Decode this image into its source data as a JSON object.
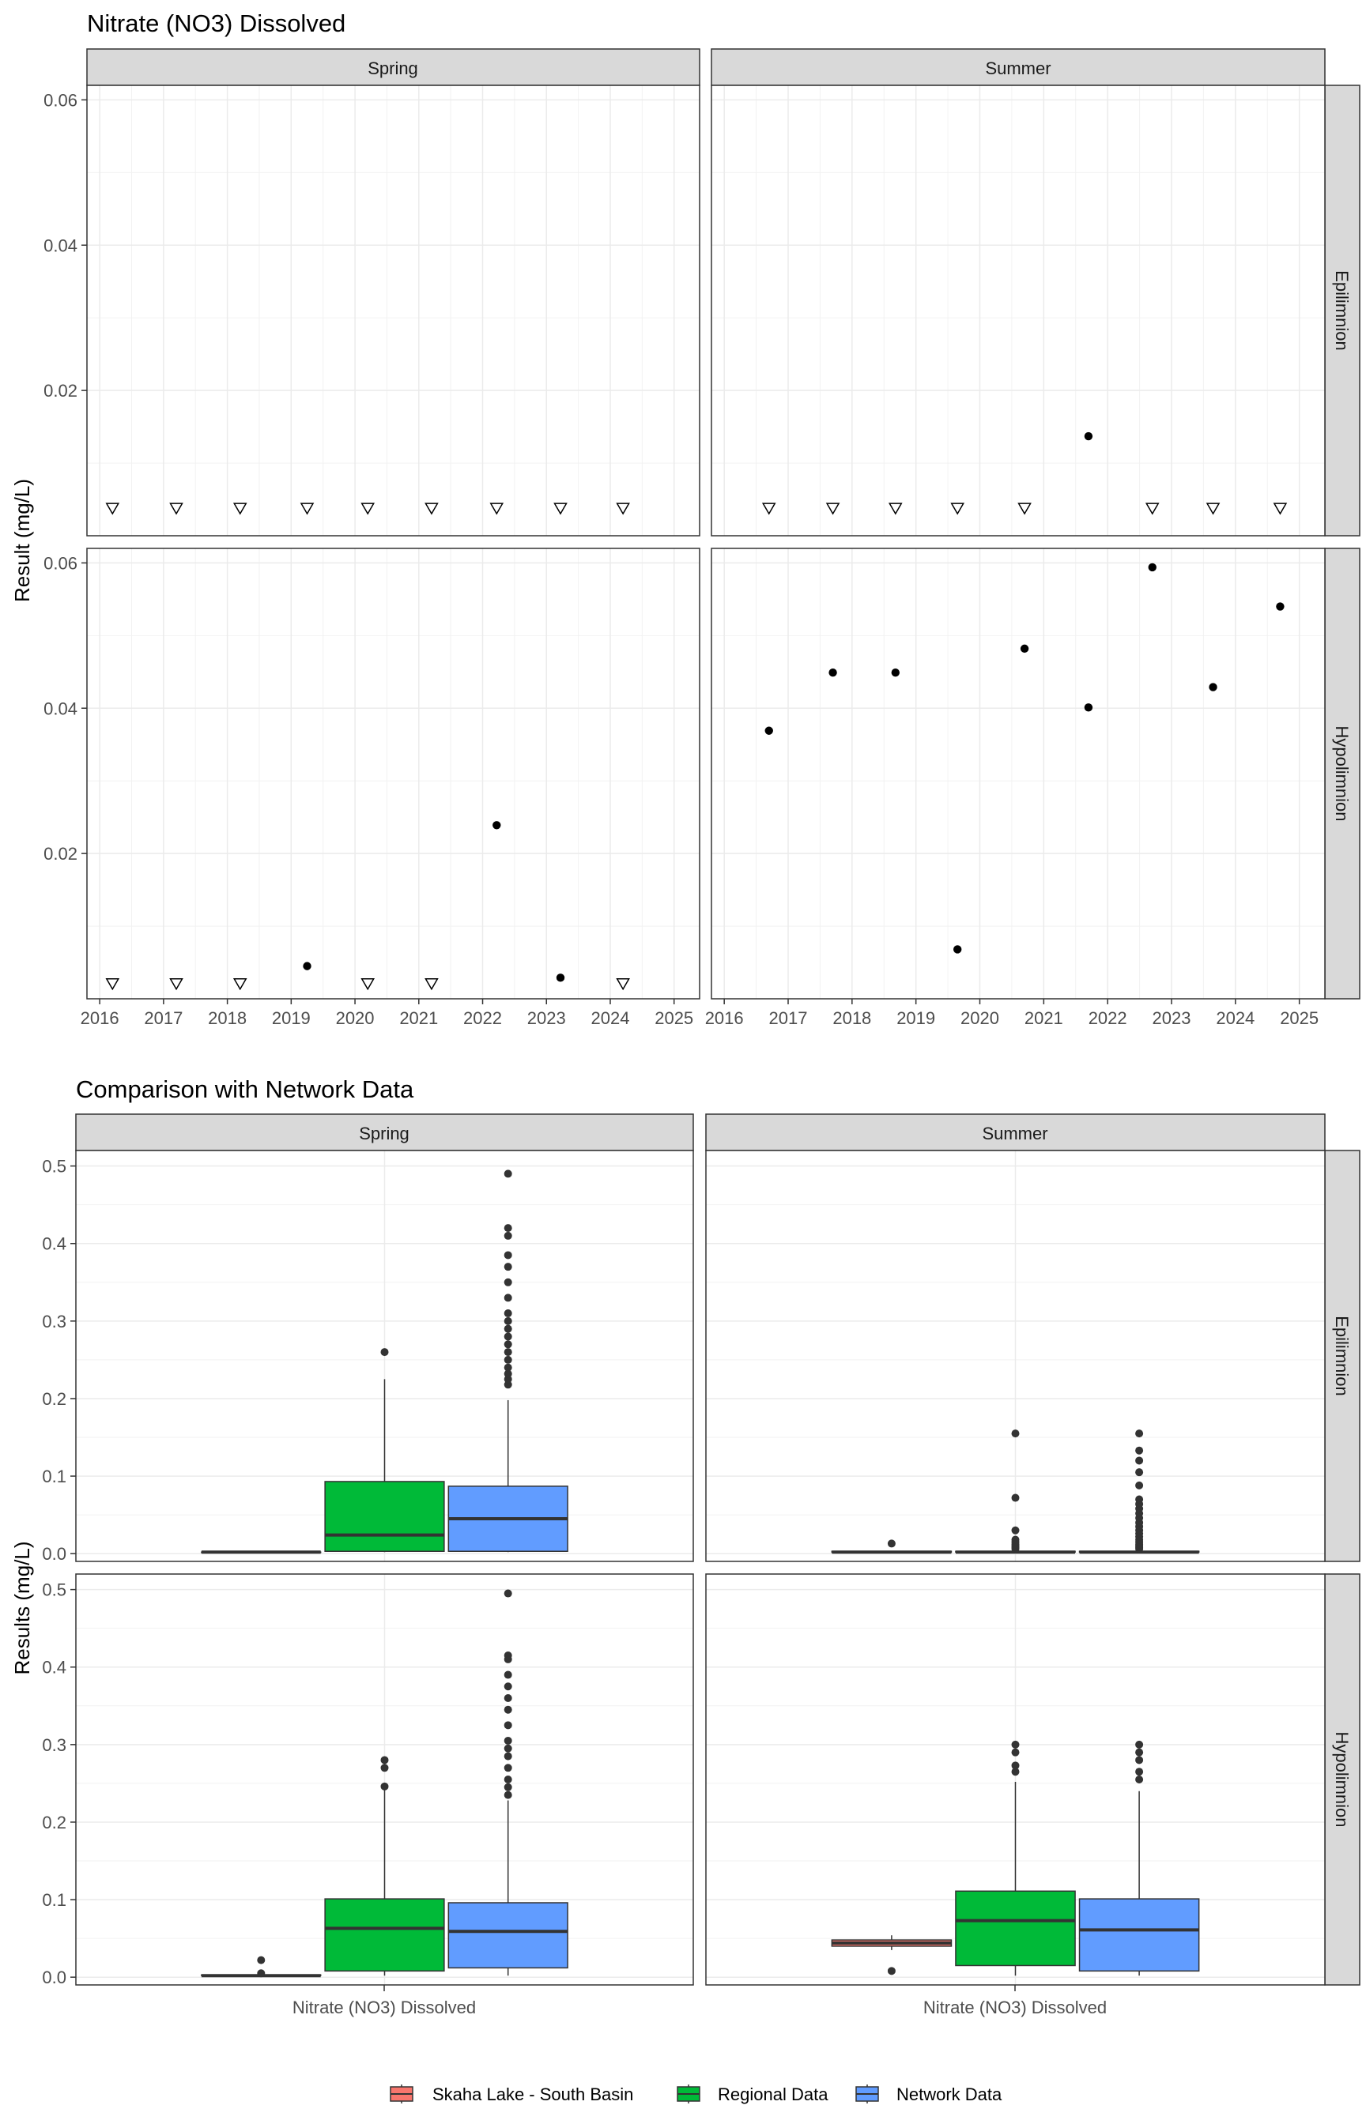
{
  "chart_data": [
    {
      "type": "scatter",
      "title": "Nitrate (NO3) Dissolved",
      "ylabel": "Result (mg/L)",
      "xlabel": "",
      "ylim": [
        0.0,
        0.062
      ],
      "yticks": [
        "0.02",
        "0.04",
        "0.06"
      ],
      "ytick_values": [
        0.02,
        0.04,
        0.06
      ],
      "xlim": [
        2015.8,
        2025.4
      ],
      "xticks": [
        "2016",
        "2017",
        "2018",
        "2019",
        "2020",
        "2021",
        "2022",
        "2023",
        "2024",
        "2025"
      ],
      "xtick_values": [
        2016,
        2017,
        2018,
        2019,
        2020,
        2021,
        2022,
        2023,
        2024,
        2025
      ],
      "columns": [
        "Spring",
        "Summer"
      ],
      "rows": [
        "Epilimnion",
        "Hypolimnion"
      ],
      "detected_marker": "filled-circle",
      "nondetect_marker": "open-triangle-down",
      "grid": true,
      "panels": [
        {
          "column": "Spring",
          "row": "Epilimnion",
          "detected": [],
          "nondetect": [
            [
              2016.2,
              0.0038
            ],
            [
              2017.2,
              0.0038
            ],
            [
              2018.2,
              0.0038
            ],
            [
              2019.25,
              0.0038
            ],
            [
              2020.2,
              0.0038
            ],
            [
              2021.2,
              0.0038
            ],
            [
              2022.22,
              0.0038
            ],
            [
              2023.22,
              0.0038
            ],
            [
              2024.2,
              0.0038
            ]
          ]
        },
        {
          "column": "Summer",
          "row": "Epilimnion",
          "detected": [
            [
              2021.7,
              0.0137
            ]
          ],
          "nondetect": [
            [
              2016.7,
              0.0038
            ],
            [
              2017.7,
              0.0038
            ],
            [
              2018.68,
              0.0038
            ],
            [
              2019.65,
              0.0038
            ],
            [
              2020.7,
              0.0038
            ],
            [
              2022.7,
              0.0038
            ],
            [
              2023.65,
              0.0038
            ],
            [
              2024.7,
              0.0038
            ]
          ]
        },
        {
          "column": "Spring",
          "row": "Hypolimnion",
          "detected": [
            [
              2019.25,
              0.0045
            ],
            [
              2022.22,
              0.0239
            ],
            [
              2023.22,
              0.0029
            ]
          ],
          "nondetect": [
            [
              2016.2,
              0.0021
            ],
            [
              2017.2,
              0.0021
            ],
            [
              2018.2,
              0.0021
            ],
            [
              2020.2,
              0.0021
            ],
            [
              2021.2,
              0.0021
            ],
            [
              2024.2,
              0.0021
            ]
          ]
        },
        {
          "column": "Summer",
          "row": "Hypolimnion",
          "detected": [
            [
              2016.7,
              0.0369
            ],
            [
              2017.7,
              0.0449
            ],
            [
              2018.68,
              0.0449
            ],
            [
              2019.65,
              0.0068
            ],
            [
              2020.7,
              0.0482
            ],
            [
              2021.7,
              0.0401
            ],
            [
              2022.7,
              0.0594
            ],
            [
              2023.65,
              0.0429
            ],
            [
              2024.7,
              0.054
            ]
          ],
          "nondetect": []
        }
      ]
    },
    {
      "type": "box",
      "title": "Comparison with Network Data",
      "ylabel": "Results (mg/L)",
      "xlabel": "",
      "category": "Nitrate (NO3) Dissolved",
      "ylim": [
        -0.01,
        0.52
      ],
      "yticks": [
        "0.0",
        "0.1",
        "0.2",
        "0.3",
        "0.4",
        "0.5"
      ],
      "ytick_values": [
        0.0,
        0.1,
        0.2,
        0.3,
        0.4,
        0.5
      ],
      "columns": [
        "Spring",
        "Summer"
      ],
      "rows": [
        "Epilimnion",
        "Hypolimnion"
      ],
      "legend": {
        "position": "bottom",
        "entries": [
          {
            "name": "Skaha Lake - South Basin",
            "color": "#F8766D"
          },
          {
            "name": "Regional Data",
            "color": "#00BA38"
          },
          {
            "name": "Network Data",
            "color": "#619CFF"
          }
        ]
      },
      "panels": [
        {
          "column": "Spring",
          "row": "Epilimnion",
          "boxes": [
            {
              "series": "Skaha Lake - South Basin",
              "q1": 0.002,
              "median": 0.002,
              "q3": 0.002,
              "low": 0.002,
              "high": 0.002,
              "outliers": []
            },
            {
              "series": "Regional Data",
              "q1": 0.003,
              "median": 0.024,
              "q3": 0.093,
              "low": 0.002,
              "high": 0.225,
              "outliers": [
                0.26
              ]
            },
            {
              "series": "Network Data",
              "q1": 0.003,
              "median": 0.045,
              "q3": 0.087,
              "low": 0.002,
              "high": 0.198,
              "outliers": [
                0.218,
                0.225,
                0.232,
                0.24,
                0.25,
                0.26,
                0.27,
                0.28,
                0.29,
                0.3,
                0.31,
                0.33,
                0.35,
                0.37,
                0.385,
                0.41,
                0.42,
                0.49
              ]
            }
          ]
        },
        {
          "column": "Summer",
          "row": "Epilimnion",
          "boxes": [
            {
              "series": "Skaha Lake - South Basin",
              "q1": 0.002,
              "median": 0.002,
              "q3": 0.003,
              "low": 0.002,
              "high": 0.003,
              "outliers": [
                0.013
              ]
            },
            {
              "series": "Regional Data",
              "q1": 0.002,
              "median": 0.002,
              "q3": 0.003,
              "low": 0.002,
              "high": 0.004,
              "outliers": [
                0.006,
                0.008,
                0.01,
                0.012,
                0.015,
                0.018,
                0.03,
                0.072,
                0.155
              ]
            },
            {
              "series": "Network Data",
              "q1": 0.002,
              "median": 0.002,
              "q3": 0.003,
              "low": 0.002,
              "high": 0.004,
              "outliers": [
                0.006,
                0.008,
                0.01,
                0.012,
                0.015,
                0.018,
                0.022,
                0.026,
                0.03,
                0.035,
                0.04,
                0.046,
                0.052,
                0.058,
                0.064,
                0.07,
                0.088,
                0.105,
                0.12,
                0.133,
                0.155
              ]
            }
          ]
        },
        {
          "column": "Spring",
          "row": "Hypolimnion",
          "boxes": [
            {
              "series": "Skaha Lake - South Basin",
              "q1": 0.002,
              "median": 0.002,
              "q3": 0.003,
              "low": 0.002,
              "high": 0.003,
              "outliers": [
                0.005,
                0.022
              ]
            },
            {
              "series": "Regional Data",
              "q1": 0.008,
              "median": 0.063,
              "q3": 0.101,
              "low": 0.002,
              "high": 0.242,
              "outliers": [
                0.246,
                0.27,
                0.28
              ]
            },
            {
              "series": "Network Data",
              "q1": 0.012,
              "median": 0.059,
              "q3": 0.096,
              "low": 0.002,
              "high": 0.228,
              "outliers": [
                0.235,
                0.245,
                0.255,
                0.27,
                0.285,
                0.295,
                0.305,
                0.325,
                0.345,
                0.36,
                0.375,
                0.39,
                0.41,
                0.415,
                0.495
              ]
            }
          ]
        },
        {
          "column": "Summer",
          "row": "Hypolimnion",
          "boxes": [
            {
              "series": "Skaha Lake - South Basin",
              "q1": 0.04,
              "median": 0.044,
              "q3": 0.048,
              "low": 0.035,
              "high": 0.054,
              "outliers": [
                0.008
              ]
            },
            {
              "series": "Regional Data",
              "q1": 0.015,
              "median": 0.073,
              "q3": 0.111,
              "low": 0.002,
              "high": 0.252,
              "outliers": [
                0.265,
                0.273,
                0.29,
                0.3
              ]
            },
            {
              "series": "Network Data",
              "q1": 0.008,
              "median": 0.061,
              "q3": 0.101,
              "low": 0.002,
              "high": 0.24,
              "outliers": [
                0.255,
                0.265,
                0.28,
                0.29,
                0.3
              ]
            }
          ]
        }
      ]
    }
  ]
}
